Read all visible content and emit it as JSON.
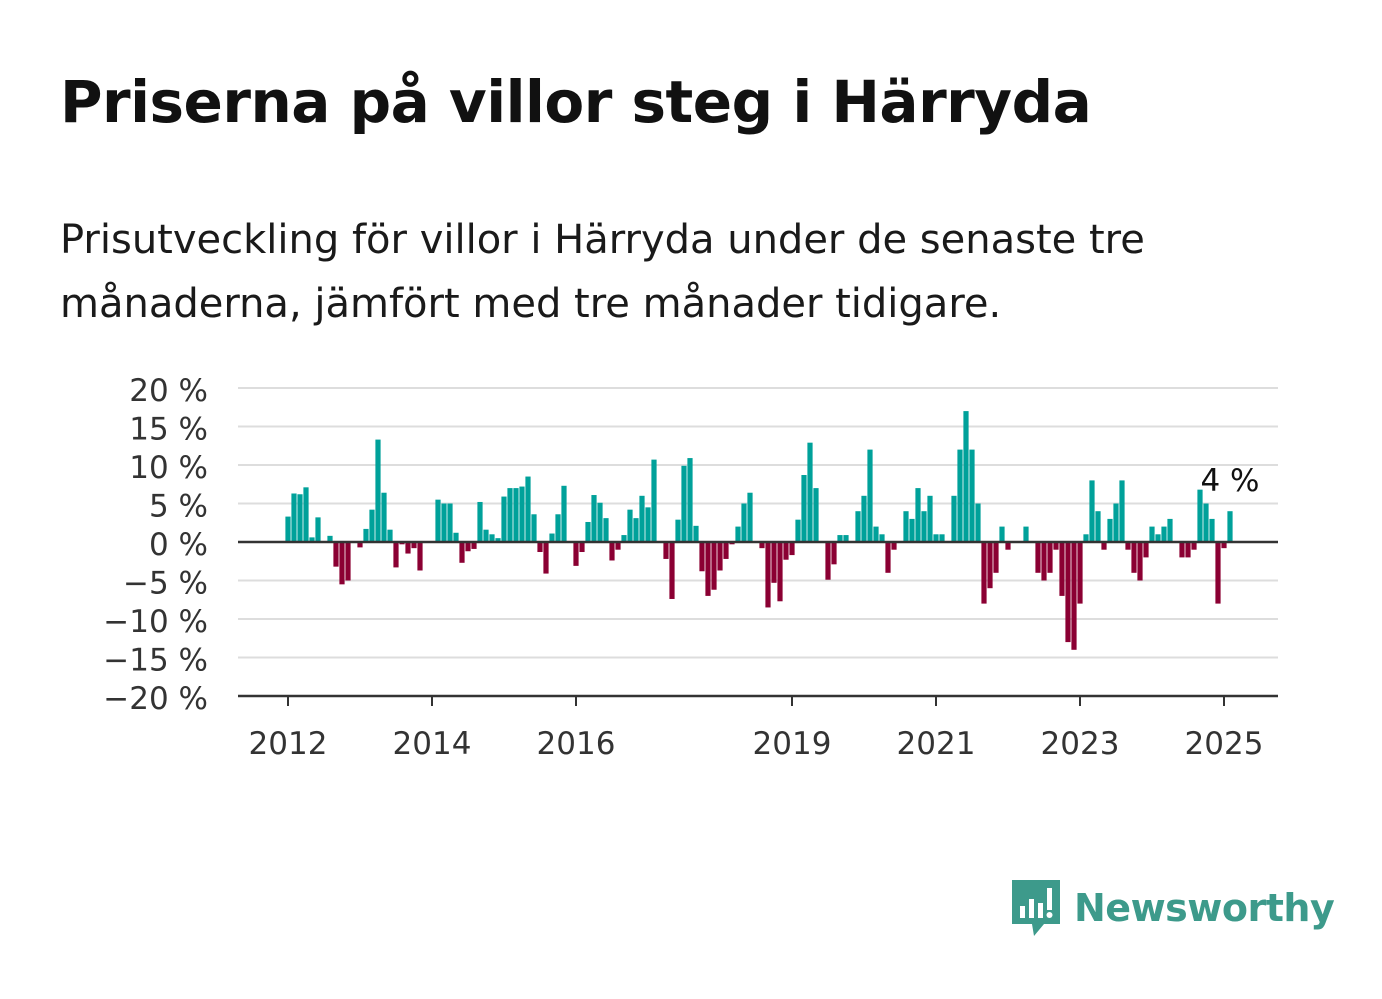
{
  "title": "Priserna på villor steg i Härryda",
  "subtitle": "Prisutveckling för villor i Härryda under de senaste tre månaderna, jämfört med tre månader tidigare.",
  "logo": {
    "name": "Newsworthy",
    "icon": "bar-chart-speech-bubble-icon",
    "color": "#3d9a8b"
  },
  "colors": {
    "positive": "#00a19a",
    "negative": "#8b0033",
    "grid": "#dddddd",
    "axis": "#333333"
  },
  "chart_data": {
    "type": "bar",
    "grid": true,
    "ylim": [
      -20,
      20
    ],
    "y_ticks": [
      20,
      15,
      10,
      5,
      0,
      -5,
      -10,
      -15,
      -20
    ],
    "y_tick_labels": [
      "20 %",
      "15 %",
      "10 %",
      "5 %",
      "0 %",
      "−5 %",
      "−10 %",
      "−15 %",
      "−20 %"
    ],
    "x_tick_labels": [
      "2012",
      "2014",
      "2016",
      "2019",
      "2021",
      "2023",
      "2025"
    ],
    "x_tick_years": [
      2012,
      2014,
      2016,
      2019,
      2021,
      2023,
      2025
    ],
    "annotation": {
      "text": "4 %",
      "value": 4
    },
    "series": [
      {
        "start": "2012-01",
        "frequency": "monthly",
        "values": [
          3.3,
          6.3,
          6.2,
          7.1,
          0.6,
          3.2,
          0.0,
          0.8,
          -3.2,
          -5.5,
          -5.0,
          0.0,
          -0.7,
          1.7,
          4.2,
          13.3,
          6.4,
          1.6,
          -3.3,
          -0.3,
          -1.5,
          -0.8,
          -3.7,
          0.0,
          0.0,
          5.5,
          5.0,
          5.0,
          1.2,
          -2.7,
          -1.2,
          -0.9,
          5.2,
          1.6,
          1.0,
          0.5,
          5.9,
          7.0,
          7.0,
          7.2,
          8.5,
          3.6,
          -1.3,
          -4.1,
          1.1,
          3.6,
          7.3,
          0.0,
          -3.1,
          -1.3,
          2.6,
          6.1,
          5.1,
          3.1,
          -2.4,
          -1.0,
          0.9,
          4.2,
          3.1,
          6.0,
          4.5,
          10.7,
          0.0,
          -2.2,
          -7.4,
          2.9,
          9.9,
          10.9,
          2.1,
          -3.8,
          -7.0,
          -6.2,
          -3.7,
          -2.2,
          -0.3,
          2.0,
          5.0,
          6.4,
          0.0,
          -0.8,
          -8.5,
          -5.3,
          -7.7,
          -2.3,
          -1.7,
          2.9,
          8.7,
          12.9,
          7.0,
          0.0,
          -4.9,
          -2.9,
          0.9,
          0.9,
          0.0,
          4.0,
          6.0,
          12.0,
          2.0,
          1.0,
          -4.0,
          -1.0,
          0.0,
          4.0,
          3.0,
          7.0,
          4.0,
          6.0,
          1.0,
          1.0,
          0.0,
          6.0,
          12.0,
          17.0,
          12.0,
          5.0,
          -8.0,
          -6.0,
          -4.0,
          2.0,
          -1.0,
          0.0,
          0.0,
          2.0,
          0.0,
          -4.0,
          -5.0,
          -4.0,
          -1.0,
          -7.0,
          -13.0,
          -14.0,
          -8.0,
          1.0,
          8.0,
          4.0,
          -1.0,
          3.0,
          5.0,
          8.0,
          -1.0,
          -4.0,
          -5.0,
          -2.0,
          2.0,
          1.0,
          2.0,
          3.0,
          0.0,
          -2.0,
          -2.0,
          -1.0,
          6.8,
          5.0,
          3.0,
          -8.0,
          -0.8,
          4.0
        ]
      }
    ]
  }
}
